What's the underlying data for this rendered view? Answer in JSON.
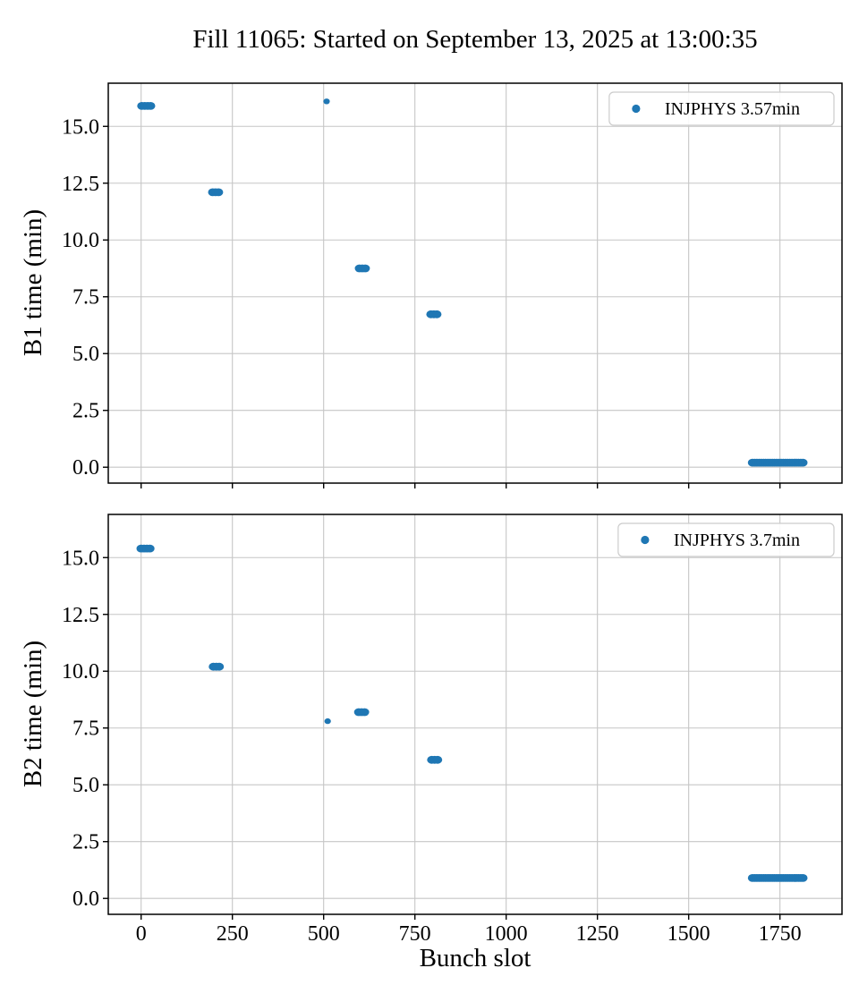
{
  "title": "Fill 11065: Started on September 13, 2025 at 13:00:35",
  "colors": {
    "marker": "#1f77b4",
    "grid": "#c6c6c6",
    "spine": "#000000",
    "legend_border": "#cccccc",
    "legend_bg": "#ffffff"
  },
  "chart_data": [
    {
      "id": "b1",
      "type": "scatter",
      "ylabel": "B1 time (min)",
      "legend": "INJPHYS 3.57min",
      "legend_position": "upper right",
      "grid": true,
      "xlim": [
        -90,
        1920
      ],
      "ylim": [
        -0.7,
        16.9
      ],
      "xticks": {
        "values": [
          0,
          250,
          500,
          750,
          1000,
          1250,
          1500,
          1750
        ],
        "labels": [
          "0",
          "250",
          "500",
          "750",
          "1000",
          "1250",
          "1500",
          "1750"
        ]
      },
      "yticks": {
        "values": [
          0,
          2.5,
          5,
          7.5,
          10,
          12.5,
          15
        ],
        "labels": [
          "0.0",
          "2.5",
          "5.0",
          "7.5",
          "10.0",
          "12.5",
          "15.0"
        ]
      },
      "show_xtick_labels": false,
      "points": [
        [
          2,
          15.9
        ],
        [
          10,
          15.9
        ],
        [
          18,
          15.9
        ],
        [
          26,
          15.9
        ],
        [
          196,
          12.1
        ],
        [
          204,
          12.1
        ],
        [
          212,
          12.1
        ],
        [
          598,
          8.75
        ],
        [
          606,
          8.75
        ],
        [
          614,
          8.75
        ],
        [
          794,
          6.73
        ],
        [
          802,
          6.73
        ],
        [
          810,
          6.73
        ],
        [
          1675,
          0.2
        ],
        [
          1681,
          0.2
        ],
        [
          1687,
          0.2
        ],
        [
          1693,
          0.2
        ],
        [
          1699,
          0.2
        ],
        [
          1705,
          0.2
        ],
        [
          1711,
          0.2
        ],
        [
          1717,
          0.2
        ],
        [
          1723,
          0.2
        ],
        [
          1729,
          0.2
        ],
        [
          1735,
          0.2
        ],
        [
          1741,
          0.2
        ],
        [
          1747,
          0.2
        ],
        [
          1753,
          0.2
        ],
        [
          1759,
          0.2
        ],
        [
          1765,
          0.2
        ],
        [
          1771,
          0.2
        ],
        [
          1777,
          0.2
        ],
        [
          1783,
          0.2
        ],
        [
          1789,
          0.2
        ],
        [
          1795,
          0.2
        ],
        [
          1801,
          0.2
        ],
        [
          1807,
          0.2
        ],
        [
          1813,
          0.2
        ]
      ],
      "small_points": [
        [
          508,
          16.1
        ]
      ]
    },
    {
      "id": "b2",
      "type": "scatter",
      "ylabel": "B2 time (min)",
      "xlabel": "Bunch slot",
      "legend": "INJPHYS 3.7min",
      "legend_position": "upper right",
      "grid": true,
      "xlim": [
        -90,
        1920
      ],
      "ylim": [
        -0.7,
        16.9
      ],
      "xticks": {
        "values": [
          0,
          250,
          500,
          750,
          1000,
          1250,
          1500,
          1750
        ],
        "labels": [
          "0",
          "250",
          "500",
          "750",
          "1000",
          "1250",
          "1500",
          "1750"
        ]
      },
      "yticks": {
        "values": [
          0,
          2.5,
          5,
          7.5,
          10,
          12.5,
          15
        ],
        "labels": [
          "0.0",
          "2.5",
          "5.0",
          "7.5",
          "10.0",
          "12.5",
          "15.0"
        ]
      },
      "show_xtick_labels": true,
      "points": [
        [
          0,
          15.4
        ],
        [
          8,
          15.4
        ],
        [
          16,
          15.4
        ],
        [
          24,
          15.4
        ],
        [
          198,
          10.2
        ],
        [
          206,
          10.2
        ],
        [
          214,
          10.2
        ],
        [
          596,
          8.2
        ],
        [
          604,
          8.2
        ],
        [
          612,
          8.2
        ],
        [
          796,
          6.1
        ],
        [
          804,
          6.1
        ],
        [
          812,
          6.1
        ],
        [
          1675,
          0.9
        ],
        [
          1681,
          0.9
        ],
        [
          1687,
          0.9
        ],
        [
          1693,
          0.9
        ],
        [
          1699,
          0.9
        ],
        [
          1705,
          0.9
        ],
        [
          1711,
          0.9
        ],
        [
          1717,
          0.9
        ],
        [
          1723,
          0.9
        ],
        [
          1729,
          0.9
        ],
        [
          1735,
          0.9
        ],
        [
          1741,
          0.9
        ],
        [
          1747,
          0.9
        ],
        [
          1753,
          0.9
        ],
        [
          1759,
          0.9
        ],
        [
          1765,
          0.9
        ],
        [
          1771,
          0.9
        ],
        [
          1777,
          0.9
        ],
        [
          1783,
          0.9
        ],
        [
          1789,
          0.9
        ],
        [
          1795,
          0.9
        ],
        [
          1801,
          0.9
        ],
        [
          1807,
          0.9
        ],
        [
          1813,
          0.9
        ]
      ],
      "small_points": [
        [
          511,
          7.8
        ]
      ]
    }
  ]
}
